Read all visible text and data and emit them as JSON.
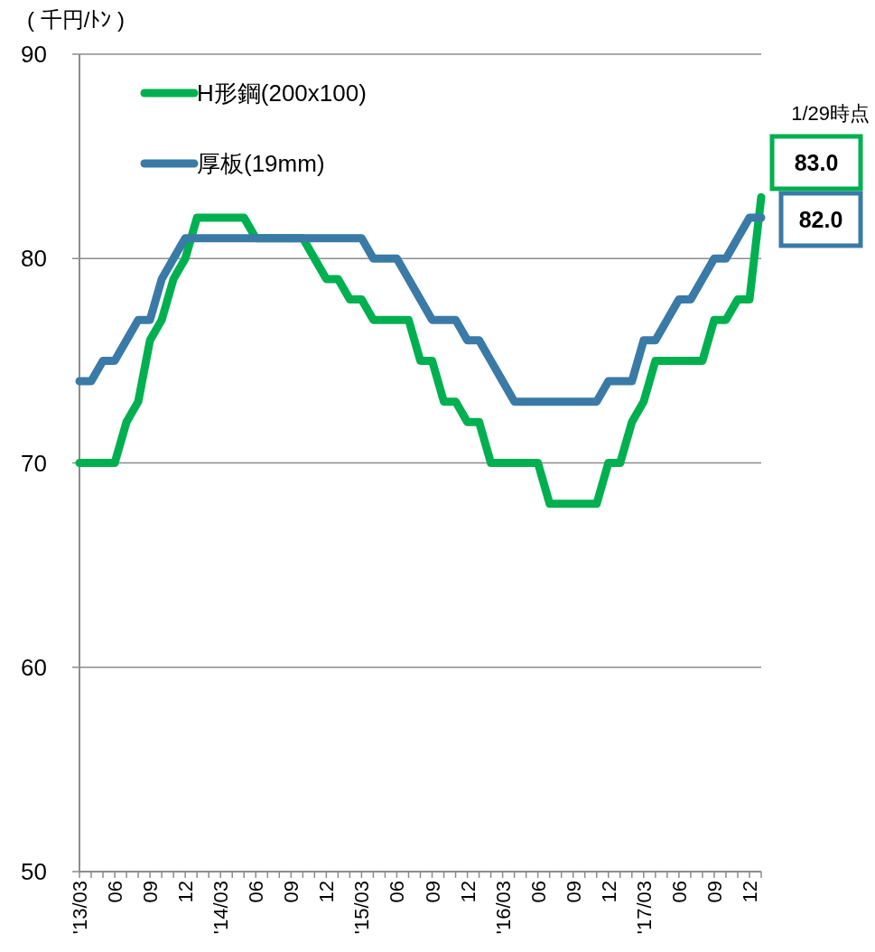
{
  "chart_data": {
    "type": "line",
    "ylabel": "( 千円/ﾄﾝ )",
    "annotations": [
      "1/29時点"
    ],
    "categories": [
      "'13/03",
      null,
      null,
      "06",
      null,
      null,
      "09",
      null,
      null,
      "12",
      null,
      null,
      "'14/03",
      null,
      null,
      "06",
      null,
      null,
      "09",
      null,
      null,
      "12",
      null,
      null,
      "'15/03",
      null,
      null,
      "06",
      null,
      null,
      "09",
      null,
      null,
      "12",
      null,
      null,
      "'16/03",
      null,
      null,
      "06",
      null,
      null,
      "09",
      null,
      null,
      "12",
      null,
      null,
      "'17/03",
      null,
      null,
      "06",
      null,
      null,
      "09",
      null,
      null,
      "12",
      null
    ],
    "series": [
      {
        "name": "H形鋼(200x100)",
        "color": "#00b050",
        "values": [
          70,
          70,
          70,
          70,
          72,
          73,
          76,
          77,
          79,
          80,
          82,
          82,
          82,
          82,
          82,
          81,
          81,
          81,
          81,
          81,
          80,
          79,
          79,
          78,
          78,
          77,
          77,
          77,
          77,
          75,
          75,
          73,
          73,
          72,
          72,
          70,
          70,
          70,
          70,
          70,
          68,
          68,
          68,
          68,
          68,
          70,
          70,
          72,
          73,
          75,
          75,
          75,
          75,
          75,
          77,
          77,
          78,
          78,
          83
        ],
        "value_labels": [
          null,
          null,
          null,
          null,
          null,
          null,
          null,
          null,
          null,
          null,
          null,
          null,
          null,
          null,
          null,
          null,
          null,
          null,
          null,
          null,
          null,
          null,
          null,
          null,
          null,
          null,
          null,
          null,
          null,
          null,
          null,
          null,
          null,
          null,
          null,
          null,
          null,
          null,
          null,
          null,
          null,
          null,
          null,
          null,
          null,
          null,
          null,
          null,
          null,
          null,
          null,
          null,
          null,
          null,
          null,
          null,
          null,
          null,
          "83.0"
        ]
      },
      {
        "name": "厚板(19mm)",
        "color": "#3a7aa6",
        "values": [
          74,
          74,
          75,
          75,
          76,
          77,
          77,
          79,
          80,
          81,
          81,
          81,
          81,
          81,
          81,
          81,
          81,
          81,
          81,
          81,
          81,
          81,
          81,
          81,
          81,
          80,
          80,
          80,
          79,
          78,
          77,
          77,
          77,
          76,
          76,
          75,
          74,
          73,
          73,
          73,
          73,
          73,
          73,
          73,
          73,
          74,
          74,
          74,
          76,
          76,
          77,
          78,
          78,
          79,
          80,
          80,
          81,
          82,
          82
        ],
        "value_labels": [
          null,
          null,
          null,
          null,
          null,
          null,
          null,
          null,
          null,
          null,
          null,
          null,
          null,
          null,
          null,
          null,
          null,
          null,
          null,
          null,
          null,
          null,
          null,
          null,
          null,
          null,
          null,
          null,
          null,
          null,
          null,
          null,
          null,
          null,
          null,
          null,
          null,
          null,
          null,
          null,
          null,
          null,
          null,
          null,
          null,
          null,
          null,
          null,
          null,
          null,
          null,
          null,
          null,
          null,
          null,
          null,
          null,
          null,
          "82.0"
        ]
      }
    ],
    "ylim": [
      50,
      90
    ],
    "yticks": [
      50,
      60,
      70,
      80,
      90
    ],
    "grid": "y",
    "legend": "top left",
    "line_style": "solid"
  }
}
